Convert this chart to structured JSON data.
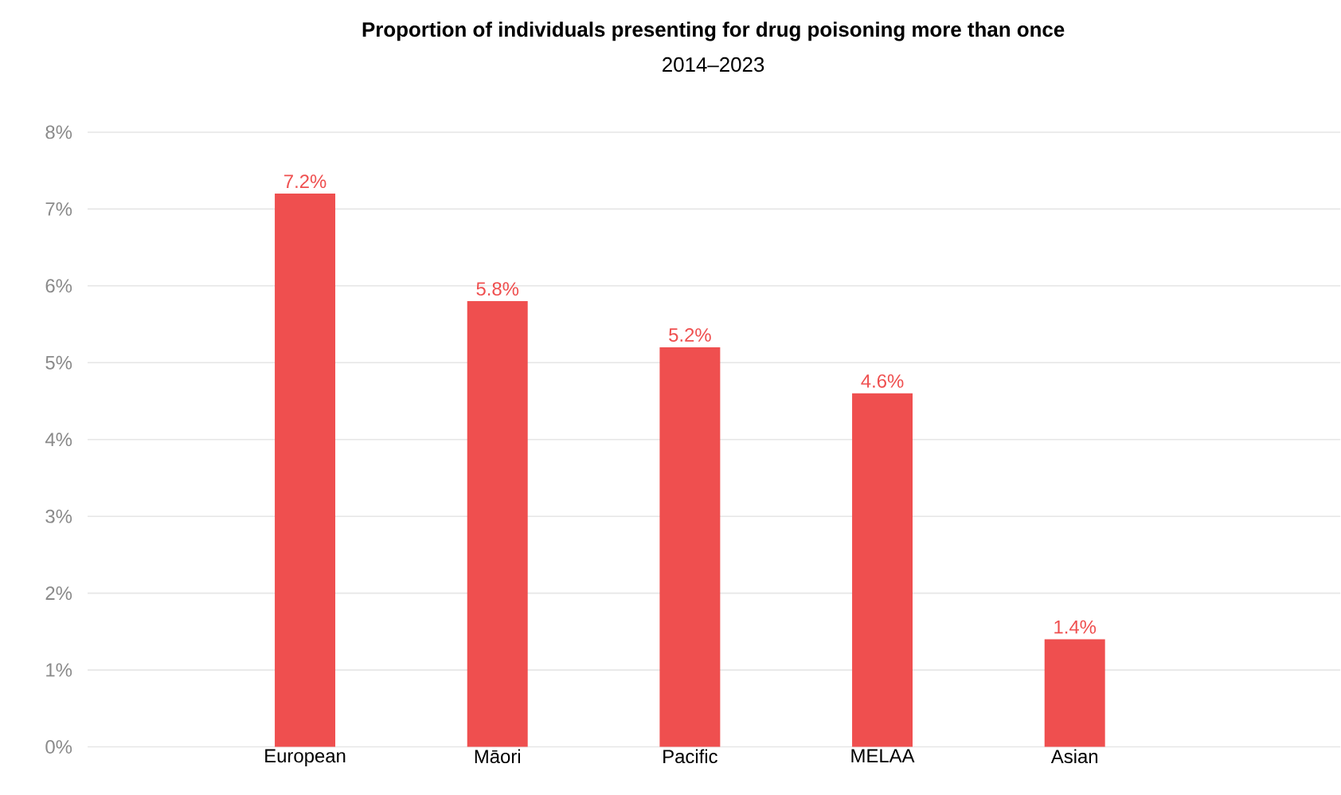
{
  "chart_data": {
    "type": "bar",
    "title": "Proportion of individuals presenting for drug poisoning more than once",
    "subtitle": "2014–2023",
    "categories": [
      "European",
      "Māori",
      "Pacific",
      "MELAA",
      "Asian"
    ],
    "values": [
      7.2,
      5.8,
      5.2,
      4.6,
      1.4
    ],
    "value_labels": [
      "7.2%",
      "5.8%",
      "5.2%",
      "4.6%",
      "1.4%"
    ],
    "color": "#ef4f4f",
    "ylim": [
      0,
      8
    ],
    "yticks": [
      {
        "value": 0,
        "label": "0%"
      },
      {
        "value": 1,
        "label": "1%"
      },
      {
        "value": 2,
        "label": "2%"
      },
      {
        "value": 3,
        "label": "3%"
      },
      {
        "value": 4,
        "label": "4%"
      },
      {
        "value": 5,
        "label": "5%"
      },
      {
        "value": 6,
        "label": "6%"
      },
      {
        "value": 7,
        "label": "7%"
      },
      {
        "value": 8,
        "label": "8%"
      }
    ],
    "grid": "y"
  }
}
